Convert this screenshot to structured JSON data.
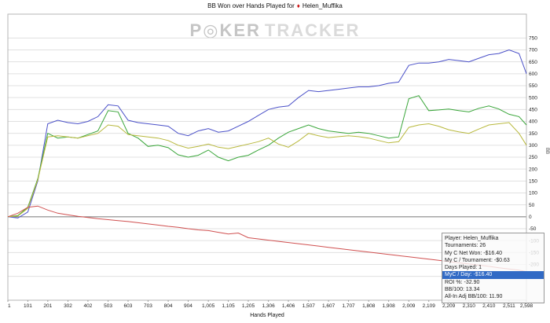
{
  "header": {
    "title_prefix": "BB Won over Hands Played for",
    "icon": "♦",
    "player": "Helen_Muffika"
  },
  "watermark": {
    "p": "P",
    "o_icon": "◎",
    "ker": "KER",
    "tracker": "TRACKER"
  },
  "axes": {
    "x_title": "Hands Played",
    "y_title": "BB"
  },
  "chart_data": {
    "type": "line",
    "title": "BB Won over Hands Played for Helen_Muffika",
    "xlabel": "Hands Played",
    "ylabel": "BB Won",
    "xlim": [
      1,
      2598
    ],
    "ylim": [
      -350,
      850
    ],
    "grid": "horizontal",
    "legend": "none",
    "yticks": [
      -250,
      -200,
      -150,
      -100,
      -50,
      0,
      50,
      100,
      150,
      200,
      250,
      300,
      350,
      400,
      450,
      500,
      550,
      600,
      650,
      700,
      750
    ],
    "xticks": [
      {
        "v": 1,
        "label": "1"
      },
      {
        "v": 101,
        "label": "101"
      },
      {
        "v": 201,
        "label": "201"
      },
      {
        "v": 302,
        "label": "302"
      },
      {
        "v": 402,
        "label": "402"
      },
      {
        "v": 503,
        "label": "503"
      },
      {
        "v": 603,
        "label": "603"
      },
      {
        "v": 703,
        "label": "703"
      },
      {
        "v": 804,
        "label": "804"
      },
      {
        "v": 904,
        "label": "904"
      },
      {
        "v": 1005,
        "label": "1,005"
      },
      {
        "v": 1105,
        "label": "1,105"
      },
      {
        "v": 1205,
        "label": "1,205"
      },
      {
        "v": 1306,
        "label": "1,306"
      },
      {
        "v": 1406,
        "label": "1,406"
      },
      {
        "v": 1507,
        "label": "1,507"
      },
      {
        "v": 1607,
        "label": "1,607"
      },
      {
        "v": 1707,
        "label": "1,707"
      },
      {
        "v": 1808,
        "label": "1,808"
      },
      {
        "v": 1908,
        "label": "1,908"
      },
      {
        "v": 2009,
        "label": "2,009"
      },
      {
        "v": 2109,
        "label": "2,109"
      },
      {
        "v": 2209,
        "label": "2,209"
      },
      {
        "v": 2310,
        "label": "2,310"
      },
      {
        "v": 2410,
        "label": "2,410"
      },
      {
        "v": 2511,
        "label": "2,511"
      },
      {
        "v": 2598,
        "label": "2,598"
      }
    ],
    "x": [
      1,
      51,
      101,
      151,
      201,
      251,
      302,
      352,
      402,
      452,
      503,
      553,
      603,
      653,
      703,
      753,
      804,
      854,
      904,
      954,
      1005,
      1055,
      1105,
      1155,
      1205,
      1255,
      1306,
      1356,
      1406,
      1456,
      1507,
      1557,
      1607,
      1657,
      1707,
      1757,
      1808,
      1858,
      1908,
      1958,
      2009,
      2059,
      2109,
      2159,
      2209,
      2259,
      2310,
      2360,
      2410,
      2460,
      2511,
      2561,
      2598
    ],
    "series": [
      {
        "name": "series-blue-line",
        "color": "#4a50c8",
        "values": [
          0,
          -5,
          20,
          150,
          390,
          405,
          395,
          390,
          400,
          420,
          470,
          465,
          405,
          395,
          390,
          385,
          380,
          350,
          340,
          360,
          370,
          355,
          360,
          380,
          400,
          425,
          450,
          460,
          465,
          500,
          530,
          525,
          530,
          535,
          540,
          545,
          545,
          550,
          560,
          565,
          635,
          645,
          645,
          650,
          660,
          655,
          650,
          665,
          680,
          685,
          700,
          685,
          600
        ]
      },
      {
        "name": "series-green-line",
        "color": "#3aa63a",
        "values": [
          0,
          5,
          40,
          160,
          350,
          330,
          335,
          330,
          345,
          360,
          445,
          440,
          350,
          330,
          295,
          300,
          290,
          260,
          250,
          258,
          280,
          250,
          235,
          250,
          258,
          280,
          300,
          330,
          355,
          370,
          385,
          370,
          360,
          355,
          350,
          355,
          350,
          340,
          330,
          335,
          495,
          508,
          445,
          448,
          452,
          445,
          440,
          455,
          465,
          452,
          430,
          420,
          385
        ]
      },
      {
        "name": "series-yellow-line",
        "color": "#b8b83c",
        "values": [
          0,
          3,
          35,
          155,
          335,
          340,
          335,
          330,
          340,
          350,
          385,
          380,
          345,
          340,
          335,
          330,
          320,
          300,
          288,
          295,
          305,
          292,
          286,
          295,
          305,
          315,
          330,
          305,
          292,
          318,
          350,
          340,
          332,
          336,
          340,
          336,
          330,
          320,
          310,
          315,
          375,
          385,
          390,
          380,
          365,
          356,
          350,
          368,
          385,
          390,
          395,
          350,
          300
        ]
      },
      {
        "name": "series-red-line",
        "color": "#d05050",
        "values": [
          0,
          15,
          40,
          45,
          28,
          15,
          8,
          2,
          -3,
          -8,
          -12,
          -16,
          -20,
          -25,
          -30,
          -35,
          -40,
          -44,
          -50,
          -55,
          -58,
          -65,
          -72,
          -68,
          -88,
          -93,
          -98,
          -103,
          -108,
          -113,
          -118,
          -123,
          -128,
          -133,
          -138,
          -143,
          -148,
          -153,
          -158,
          -163,
          -168,
          -173,
          -178,
          -183,
          -188,
          -193,
          -198,
          -203,
          -208,
          -214,
          -219,
          -224,
          -230
        ]
      }
    ]
  },
  "tooltip": {
    "highlight_index": 5,
    "rows": [
      "Player: Helen_Muffika",
      "Tournaments: 26",
      "My C Net Won: -$16.40",
      "My C / Tournament: -$0.63",
      "Days Played: 1",
      "MyC / Day: -$16.40",
      "ROI %: -32.90",
      "BB/100: 13.34",
      "All-In Adj BB/100: 11.90"
    ]
  }
}
